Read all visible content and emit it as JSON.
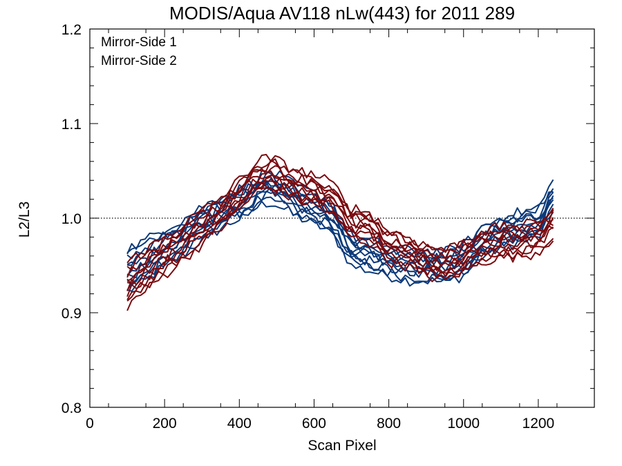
{
  "chart_data": {
    "type": "line",
    "title": "MODIS/Aqua AV118 nLw(443) for 2011 289",
    "xlabel": "Scan Pixel",
    "ylabel": "L2/L3",
    "xlim": [
      0,
      1350
    ],
    "ylim": [
      0.8,
      1.2
    ],
    "x_ticks": [
      0,
      200,
      400,
      600,
      800,
      1000,
      1200
    ],
    "y_ticks": [
      0.8,
      0.9,
      1.0,
      1.1,
      1.2
    ],
    "x_tick_labels": [
      "0",
      "200",
      "400",
      "600",
      "800",
      "1000",
      "1200"
    ],
    "y_tick_labels": [
      "0.8",
      "0.9",
      "1.0",
      "1.1",
      "1.2"
    ],
    "reference_line": {
      "y": 1.0,
      "style": "dotted"
    },
    "legend_position": "top-left",
    "series": [
      {
        "name": "Mirror-Side 1",
        "color": "#0b3a7a",
        "x": [
          100,
          150,
          200,
          250,
          300,
          350,
          400,
          450,
          480,
          500,
          550,
          600,
          650,
          700,
          750,
          800,
          850,
          900,
          950,
          1000,
          1050,
          1100,
          1150,
          1200,
          1250
        ],
        "y": [
          0.945,
          0.955,
          0.97,
          0.98,
          0.995,
          1.005,
          1.015,
          1.028,
          1.033,
          1.03,
          1.018,
          1.01,
          1.0,
          0.965,
          0.96,
          0.955,
          0.95,
          0.95,
          0.948,
          0.955,
          0.975,
          0.985,
          0.99,
          0.995,
          1.03
        ]
      },
      {
        "name": "Mirror-Side 2",
        "color": "#7a0b10",
        "x": [
          100,
          150,
          200,
          250,
          300,
          350,
          400,
          450,
          480,
          500,
          550,
          600,
          650,
          700,
          750,
          800,
          850,
          900,
          950,
          1000,
          1050,
          1100,
          1150,
          1200,
          1250
        ],
        "y": [
          0.93,
          0.945,
          0.96,
          0.975,
          0.99,
          1.005,
          1.025,
          1.045,
          1.048,
          1.045,
          1.035,
          1.03,
          1.02,
          0.995,
          0.99,
          0.97,
          0.965,
          0.955,
          0.95,
          0.96,
          0.97,
          0.975,
          0.975,
          0.98,
          1.0
        ]
      }
    ]
  }
}
